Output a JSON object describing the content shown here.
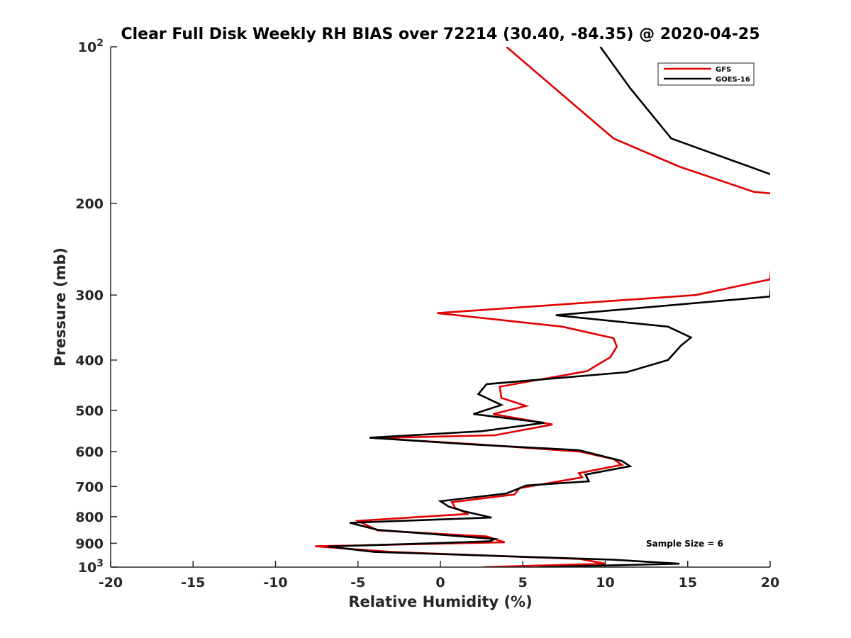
{
  "chart_data": {
    "type": "line",
    "title": "Clear Full Disk Weekly RH BIAS over 72214 (30.40, -84.35) @ 2020-04-25",
    "xlabel": "Relative Humidity (%)",
    "ylabel": "Pressure (mb)",
    "xlim": [
      -20,
      20
    ],
    "ylim": [
      100,
      1000
    ],
    "yscale": "log",
    "yreversed": true,
    "x_ticks": [
      {
        "value": -20,
        "label": "-20"
      },
      {
        "value": -15,
        "label": "-15"
      },
      {
        "value": -10,
        "label": "-10"
      },
      {
        "value": -5,
        "label": "-5"
      },
      {
        "value": 0,
        "label": "0"
      },
      {
        "value": 5,
        "label": "5"
      },
      {
        "value": 10,
        "label": "10"
      },
      {
        "value": 15,
        "label": "15"
      },
      {
        "value": 20,
        "label": "20"
      }
    ],
    "y_ticks": [
      {
        "value": 100,
        "base": "10",
        "exp": "2"
      },
      {
        "value": 200,
        "base": "200",
        "exp": ""
      },
      {
        "value": 300,
        "base": "300",
        "exp": ""
      },
      {
        "value": 400,
        "base": "400",
        "exp": ""
      },
      {
        "value": 500,
        "base": "500",
        "exp": ""
      },
      {
        "value": 600,
        "base": "600",
        "exp": ""
      },
      {
        "value": 700,
        "base": "700",
        "exp": ""
      },
      {
        "value": 800,
        "base": "800",
        "exp": ""
      },
      {
        "value": 900,
        "base": "900",
        "exp": ""
      },
      {
        "value": 1000,
        "base": "10",
        "exp": "3"
      }
    ],
    "legend": {
      "placement": "top-right"
    },
    "annotation": "Sample Size = 6",
    "series": [
      {
        "name": "GFS",
        "color": "#e00000",
        "points": [
          [
            4.0,
            100
          ],
          [
            10.5,
            150
          ],
          [
            14.5,
            170
          ],
          [
            19.0,
            190
          ],
          [
            20.5,
            192
          ],
          [
            20.0,
            280
          ],
          [
            18.8,
            285
          ],
          [
            15.5,
            300
          ],
          [
            -0.2,
            325
          ],
          [
            7.4,
            345
          ],
          [
            10.5,
            363
          ],
          [
            10.7,
            377
          ],
          [
            10.3,
            395
          ],
          [
            8.9,
            420
          ],
          [
            3.6,
            450
          ],
          [
            3.7,
            473
          ],
          [
            5.2,
            490
          ],
          [
            3.2,
            508
          ],
          [
            6.8,
            532
          ],
          [
            3.3,
            558
          ],
          [
            -4.0,
            565
          ],
          [
            2.0,
            580
          ],
          [
            8.5,
            600
          ],
          [
            10.5,
            620
          ],
          [
            11.0,
            636
          ],
          [
            8.4,
            660
          ],
          [
            8.6,
            672
          ],
          [
            4.8,
            705
          ],
          [
            4.5,
            725
          ],
          [
            0.7,
            750
          ],
          [
            0.9,
            770
          ],
          [
            1.7,
            790
          ],
          [
            -5.0,
            815
          ],
          [
            -3.8,
            850
          ],
          [
            2.8,
            873
          ],
          [
            3.9,
            896
          ],
          [
            -7.6,
            912
          ],
          [
            -3.0,
            935
          ],
          [
            8.5,
            965
          ],
          [
            10.0,
            985
          ],
          [
            2.6,
            1000
          ]
        ]
      },
      {
        "name": "GOES-16",
        "color": "#000000",
        "points": [
          [
            9.7,
            100
          ],
          [
            11.5,
            120
          ],
          [
            14.0,
            150
          ],
          [
            20.5,
            178
          ],
          [
            20.0,
            302
          ],
          [
            7.0,
            328
          ],
          [
            13.8,
            345
          ],
          [
            15.2,
            362
          ],
          [
            14.6,
            375
          ],
          [
            13.8,
            400
          ],
          [
            11.3,
            422
          ],
          [
            2.8,
            445
          ],
          [
            2.3,
            465
          ],
          [
            3.7,
            488
          ],
          [
            2.0,
            508
          ],
          [
            6.3,
            528
          ],
          [
            2.5,
            548
          ],
          [
            -4.3,
            564
          ],
          [
            1.5,
            580
          ],
          [
            8.4,
            596
          ],
          [
            11.0,
            625
          ],
          [
            11.5,
            640
          ],
          [
            8.8,
            664
          ],
          [
            9.0,
            684
          ],
          [
            5.2,
            697
          ],
          [
            4.0,
            722
          ],
          [
            0.0,
            747
          ],
          [
            0.5,
            765
          ],
          [
            1.5,
            782
          ],
          [
            3.1,
            803
          ],
          [
            -5.5,
            822
          ],
          [
            -3.8,
            848
          ],
          [
            3.3,
            883
          ],
          [
            3.0,
            892
          ],
          [
            -6.8,
            913
          ],
          [
            -4.0,
            935
          ],
          [
            10.5,
            968
          ],
          [
            14.5,
            985
          ],
          [
            6.0,
            1000
          ]
        ]
      }
    ]
  }
}
